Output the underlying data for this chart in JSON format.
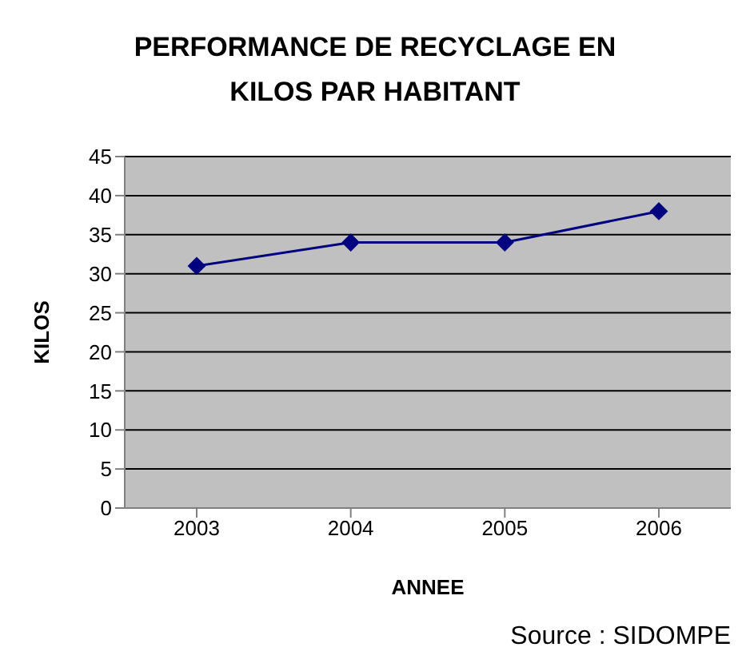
{
  "chart_data": {
    "type": "line",
    "title": "PERFORMANCE DE RECYCLAGE EN KILOS PAR HABITANT",
    "xlabel": "ANNEE",
    "ylabel": "KILOS",
    "annotations": [
      "Source : SIDOMPE"
    ],
    "categories": [
      "2003",
      "2004",
      "2005",
      "2006"
    ],
    "series": [
      {
        "color": "#000080",
        "values": [
          31,
          34,
          34,
          38
        ]
      }
    ],
    "ylim": [
      0,
      45
    ],
    "yticks": [
      0,
      5,
      10,
      15,
      20,
      25,
      30,
      35,
      40,
      45
    ],
    "grid": "y",
    "marker": "diamond",
    "line_style": "solid"
  }
}
